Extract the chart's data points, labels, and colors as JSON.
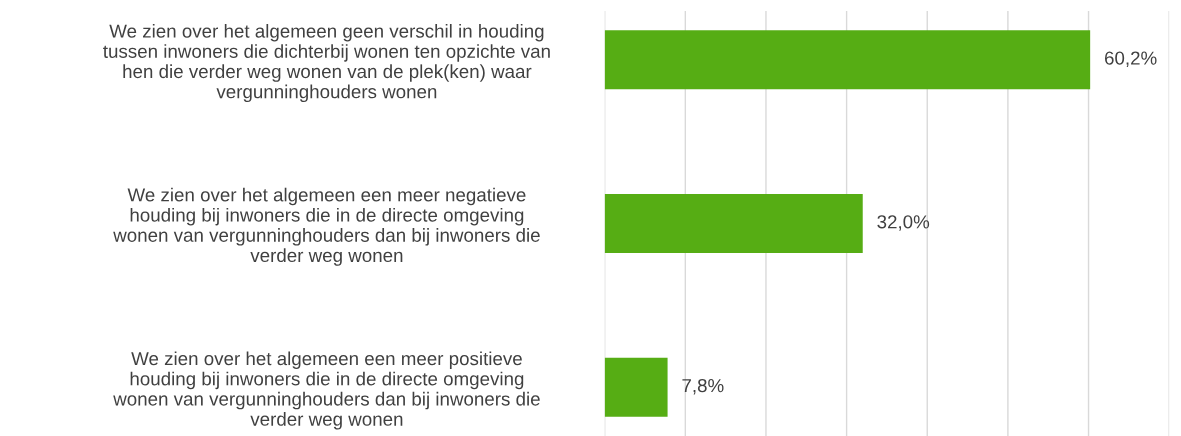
{
  "chart_data": {
    "type": "bar",
    "orientation": "horizontal",
    "categories": [
      "We zien over het algemeen geen verschil in houding\ntussen inwoners die dichterbij wonen ten opzichte van\nhen die verder weg wonen van de plek(ken) waar\nvergunninghouders wonen",
      "We zien over het algemeen een meer negatieve\nhouding bij inwoners die in de directe omgeving\nwonen van vergunninghouders dan bij inwoners die\nverder weg wonen",
      "We zien over het algemeen een meer positieve\nhouding bij inwoners die in de directe omgeving\nwonen van vergunninghouders dan bij inwoners die\nverder weg wonen"
    ],
    "values": [
      60.2,
      32.0,
      7.8
    ],
    "value_labels": [
      "60,2%",
      "32,0%",
      "7,8%"
    ],
    "color": "#56ad14",
    "xlim": [
      0,
      70
    ],
    "xticks": [
      {
        "value": 0,
        "label": null
      },
      {
        "value": 10,
        "label": null
      },
      {
        "value": 20,
        "label": null
      },
      {
        "value": 30,
        "label": null
      },
      {
        "value": 40,
        "label": null
      },
      {
        "value": 50,
        "label": null
      },
      {
        "value": 60,
        "label": null
      },
      {
        "value": 70,
        "label": null
      }
    ],
    "tick_labels": "y",
    "grid": "x",
    "legend": false
  }
}
